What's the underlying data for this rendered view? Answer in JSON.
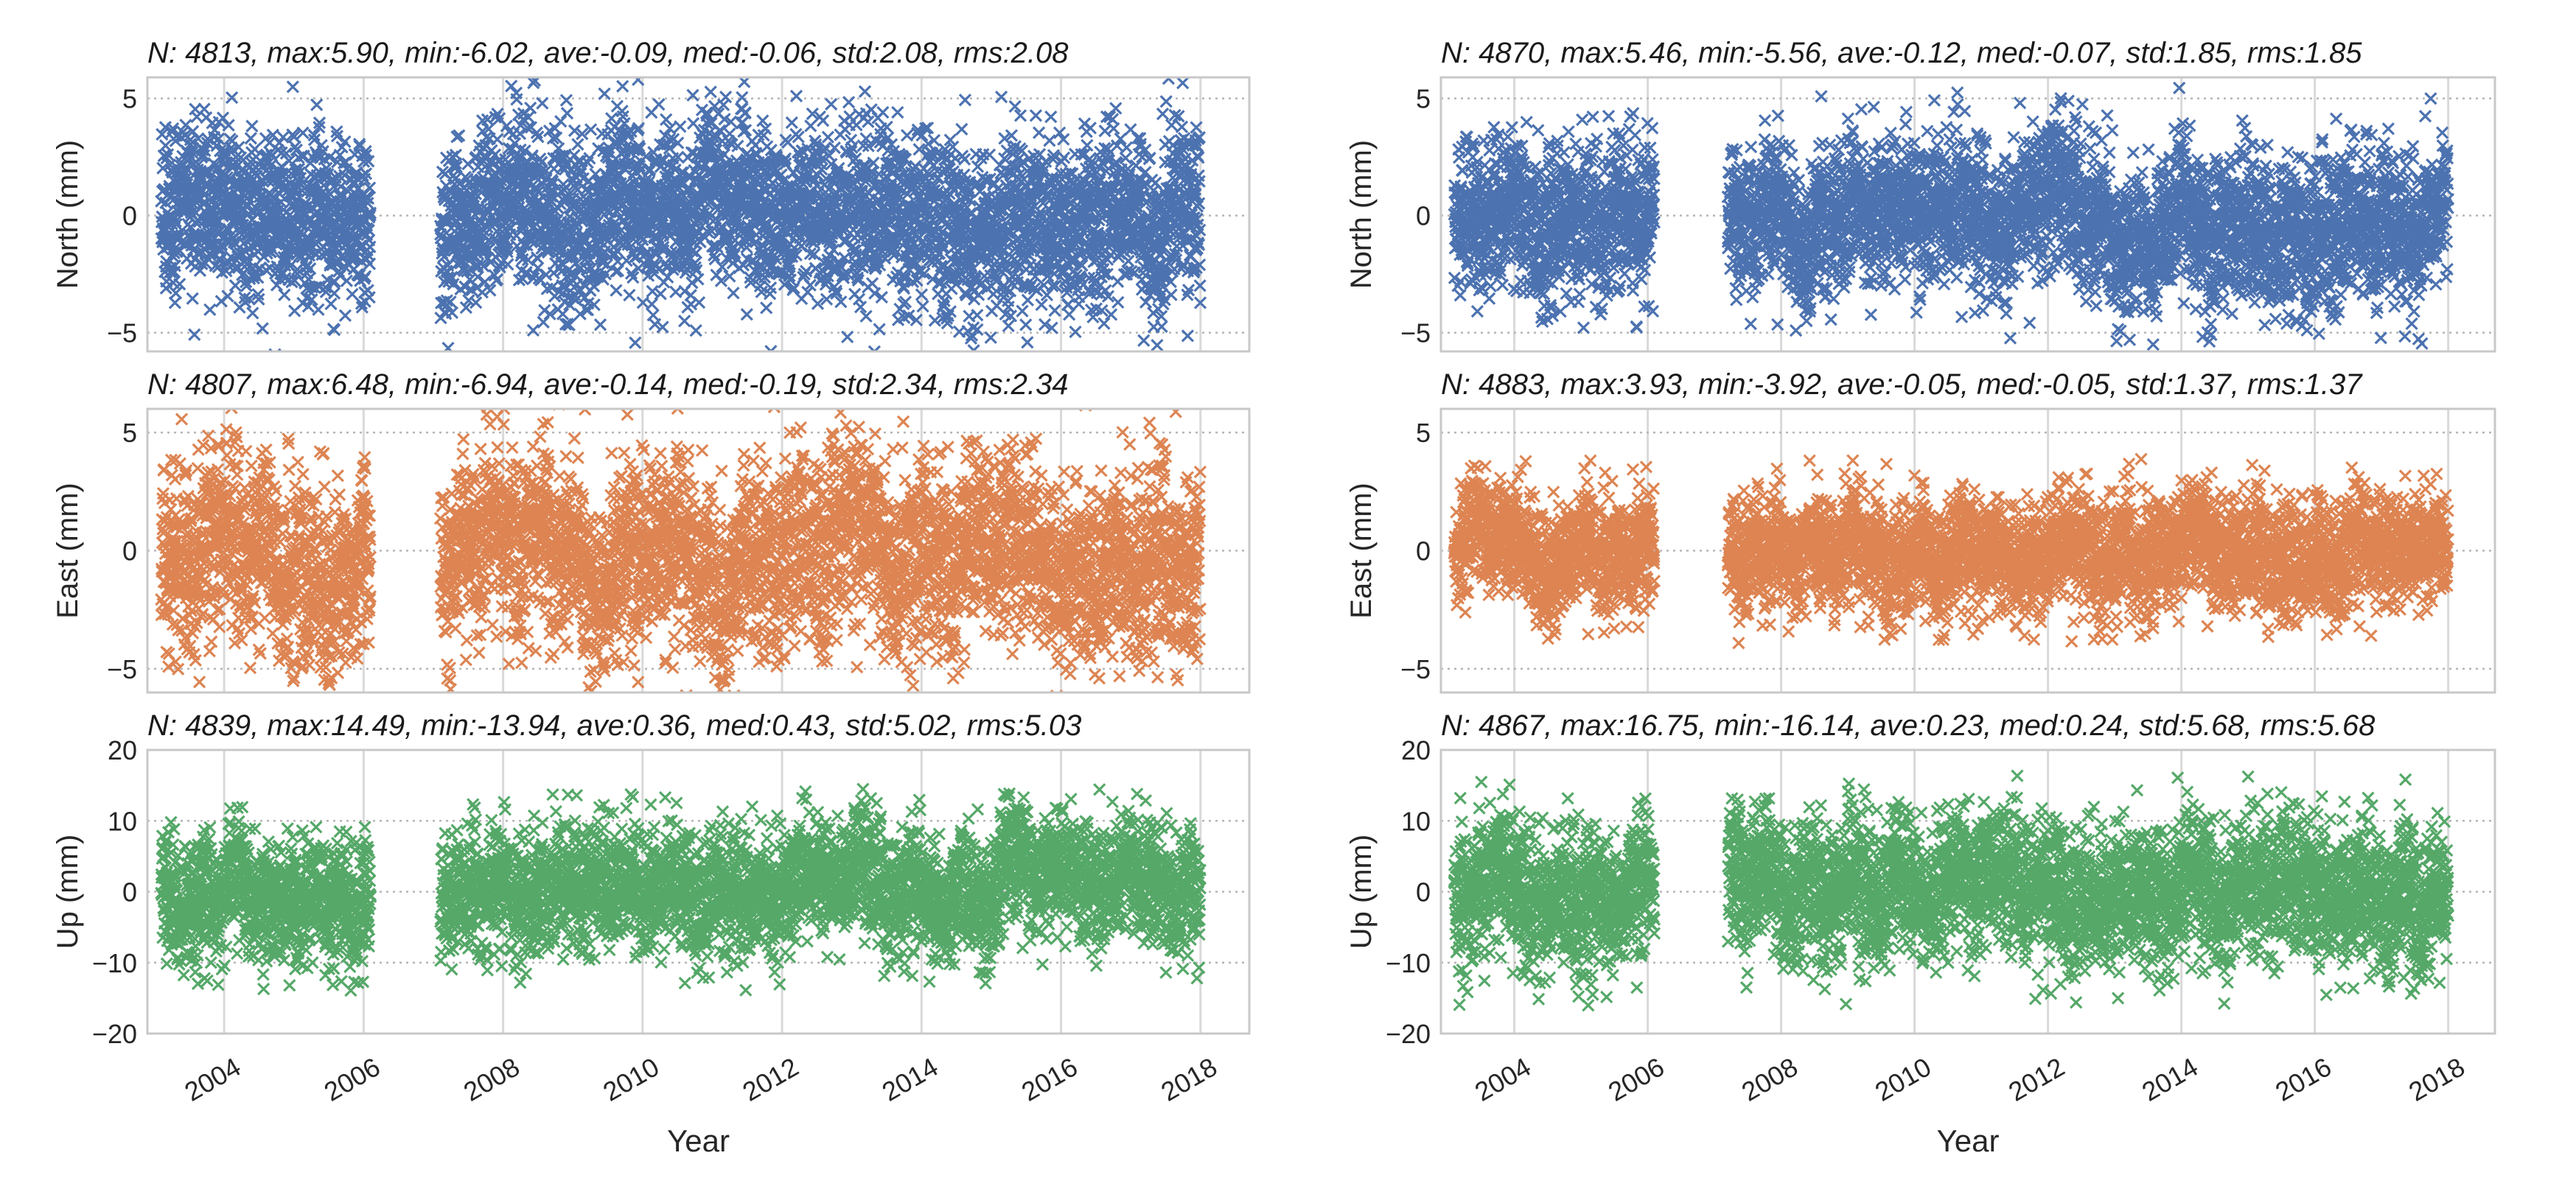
{
  "chart_data": {
    "type": "scatter",
    "marker": "x",
    "xlabel": "Year",
    "xlim": [
      2002.9,
      2018.7
    ],
    "xticks": [
      2004,
      2006,
      2008,
      2010,
      2012,
      2014,
      2016,
      2018
    ],
    "xticklabels": [
      "2004",
      "2006",
      "2008",
      "2010",
      "2012",
      "2014",
      "2016",
      "2018"
    ],
    "columns": [
      {
        "gaps": [
          [
            2006.1,
            2007.1
          ]
        ],
        "panels": [
          {
            "component": "north",
            "title": "N: 4813, max:5.90, min:-6.02, ave:-0.09, med:-0.06, std:2.08, rms:2.08",
            "ylabel": "North (mm)",
            "ylim": [
              -5.8,
              5.9
            ],
            "yticks": [
              -5,
              0,
              5
            ],
            "yticklabels": [
              "−5",
              "0",
              "5"
            ],
            "color": "#4c72b0",
            "N": 4813,
            "max": 5.9,
            "min": -6.02,
            "ave": -0.09,
            "med": -0.06,
            "std": 2.08,
            "rms": 2.08
          },
          {
            "component": "east",
            "title": "N: 4807, max:6.48, min:-6.94, ave:-0.14, med:-0.19, std:2.34, rms:2.34",
            "ylabel": "East (mm)",
            "ylim": [
              -6.0,
              6.0
            ],
            "yticks": [
              -5,
              0,
              5
            ],
            "yticklabels": [
              "−5",
              "0",
              "5"
            ],
            "color": "#dd8452",
            "N": 4807,
            "max": 6.48,
            "min": -6.94,
            "ave": -0.14,
            "med": -0.19,
            "std": 2.34,
            "rms": 2.34
          },
          {
            "component": "up",
            "title": "N: 4839, max:14.49, min:-13.94, ave:0.36, med:0.43, std:5.02, rms:5.03",
            "ylabel": "Up (mm)",
            "ylim": [
              -20,
              20
            ],
            "yticks": [
              -20,
              -10,
              0,
              10,
              20
            ],
            "yticklabels": [
              "−20",
              "−10",
              "0",
              "10",
              "20"
            ],
            "color": "#55a868",
            "N": 4839,
            "max": 14.49,
            "min": -13.94,
            "ave": 0.36,
            "med": 0.43,
            "std": 5.02,
            "rms": 5.03
          }
        ]
      },
      {
        "gaps": [
          [
            2006.1,
            2007.2
          ]
        ],
        "panels": [
          {
            "component": "north",
            "title": "N: 4870, max:5.46, min:-5.56, ave:-0.12, med:-0.07, std:1.85, rms:1.85",
            "ylabel": "North (mm)",
            "ylim": [
              -5.8,
              5.9
            ],
            "yticks": [
              -5,
              0,
              5
            ],
            "yticklabels": [
              "−5",
              "0",
              "5"
            ],
            "color": "#4c72b0",
            "N": 4870,
            "max": 5.46,
            "min": -5.56,
            "ave": -0.12,
            "med": -0.07,
            "std": 1.85,
            "rms": 1.85
          },
          {
            "component": "east",
            "title": "N: 4883, max:3.93, min:-3.92, ave:-0.05, med:-0.05, std:1.37, rms:1.37",
            "ylabel": "East (mm)",
            "ylim": [
              -6.0,
              6.0
            ],
            "yticks": [
              -5,
              0,
              5
            ],
            "yticklabels": [
              "−5",
              "0",
              "5"
            ],
            "color": "#dd8452",
            "N": 4883,
            "max": 3.93,
            "min": -3.92,
            "ave": -0.05,
            "med": -0.05,
            "std": 1.37,
            "rms": 1.37
          },
          {
            "component": "up",
            "title": "N: 4867, max:16.75, min:-16.14, ave:0.23, med:0.24, std:5.68, rms:5.68",
            "ylabel": "Up (mm)",
            "ylim": [
              -20,
              20
            ],
            "yticks": [
              -20,
              -10,
              0,
              10,
              20
            ],
            "yticklabels": [
              "−20",
              "−10",
              "0",
              "10",
              "20"
            ],
            "color": "#55a868",
            "N": 4867,
            "max": 16.75,
            "min": -16.14,
            "ave": 0.23,
            "med": 0.24,
            "std": 5.68,
            "rms": 5.68
          }
        ]
      }
    ]
  }
}
